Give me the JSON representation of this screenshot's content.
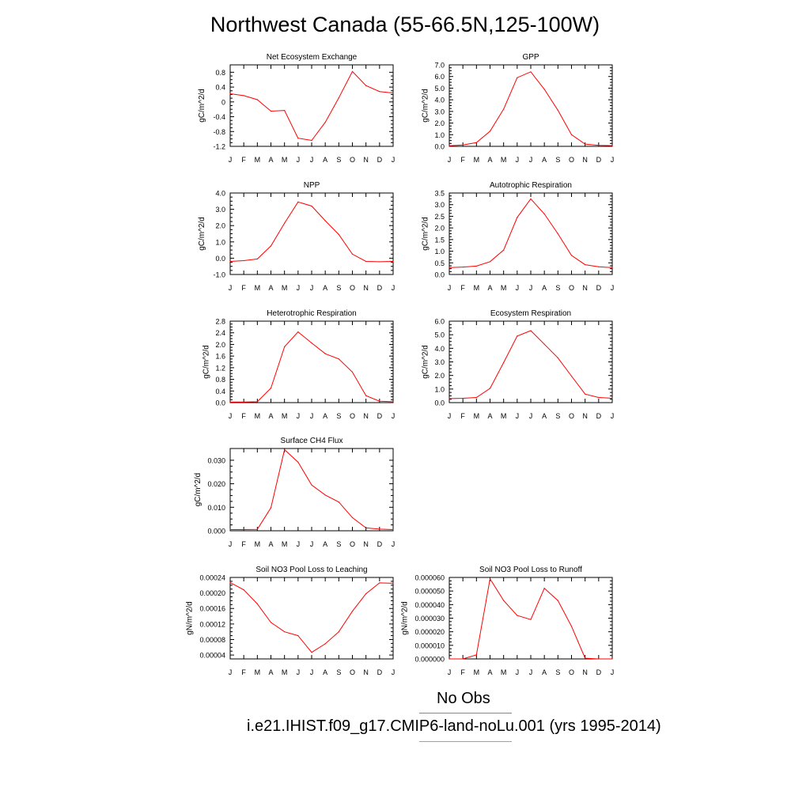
{
  "figure": {
    "title": "Northwest Canada (55-66.5N,125-100W)",
    "series_color": "#ff0000",
    "obs_color": "#7777ff"
  },
  "legend": {
    "obs_label": "No Obs",
    "model_label": "i.e21.IHIST.f09_g17.CMIP6-land-noLu.001 (yrs 1995-2014)"
  },
  "chart_data": [
    {
      "type": "line",
      "title": "Net Ecosystem Exchange",
      "ylabel": "gC/m^2/d",
      "xlabel": "",
      "categories": [
        "J",
        "F",
        "M",
        "A",
        "M",
        "J",
        "J",
        "A",
        "S",
        "O",
        "N",
        "D",
        "J"
      ],
      "ylim": [
        -1.2,
        1.0
      ],
      "yticks": [
        -1.2,
        -0.8,
        -0.4,
        0,
        0.4,
        0.8
      ],
      "yticklabels": [
        "-1.2",
        "-0.8",
        "-0.4",
        "0",
        "0.4",
        "0.8"
      ],
      "values": [
        0.22,
        0.17,
        0.06,
        -0.25,
        -0.23,
        -0.98,
        -1.04,
        -0.55,
        0.11,
        0.82,
        0.44,
        0.28,
        0.24
      ]
    },
    {
      "type": "line",
      "title": "GPP",
      "ylabel": "gC/m^2/d",
      "xlabel": "",
      "categories": [
        "J",
        "F",
        "M",
        "A",
        "M",
        "J",
        "J",
        "A",
        "S",
        "O",
        "N",
        "D",
        "J"
      ],
      "ylim": [
        0,
        7.0
      ],
      "yticks": [
        0,
        1,
        2,
        3,
        4,
        5,
        6,
        7
      ],
      "yticklabels": [
        "0.0",
        "1.0",
        "2.0",
        "3.0",
        "4.0",
        "5.0",
        "6.0",
        "7.0"
      ],
      "values": [
        0.05,
        0.12,
        0.32,
        1.3,
        3.2,
        5.9,
        6.4,
        4.9,
        3.1,
        1.0,
        0.2,
        0.08,
        0.06
      ]
    },
    {
      "type": "line",
      "title": "NPP",
      "ylabel": "gC/m^2/d",
      "xlabel": "",
      "categories": [
        "J",
        "F",
        "M",
        "A",
        "M",
        "J",
        "J",
        "A",
        "S",
        "O",
        "N",
        "D",
        "J"
      ],
      "ylim": [
        -1.0,
        4.0
      ],
      "yticks": [
        -1,
        0,
        1,
        2,
        3,
        4
      ],
      "yticklabels": [
        "-1.0",
        "0.0",
        "1.0",
        "2.0",
        "3.0",
        "4.0"
      ],
      "values": [
        -0.2,
        -0.15,
        -0.05,
        0.75,
        2.15,
        3.45,
        3.2,
        2.3,
        1.45,
        0.25,
        -0.2,
        -0.22,
        -0.2
      ]
    },
    {
      "type": "line",
      "title": "Autotrophic Respiration",
      "ylabel": "gC/m^2/d",
      "xlabel": "",
      "categories": [
        "J",
        "F",
        "M",
        "A",
        "M",
        "J",
        "J",
        "A",
        "S",
        "O",
        "N",
        "D",
        "J"
      ],
      "ylim": [
        0,
        3.5
      ],
      "yticks": [
        0,
        0.5,
        1,
        1.5,
        2,
        2.5,
        3,
        3.5
      ],
      "yticklabels": [
        "0.0",
        "0.5",
        "1.0",
        "1.5",
        "2.0",
        "2.5",
        "3.0",
        "3.5"
      ],
      "values": [
        0.3,
        0.32,
        0.36,
        0.55,
        1.05,
        2.45,
        3.25,
        2.6,
        1.75,
        0.82,
        0.42,
        0.33,
        0.3
      ]
    },
    {
      "type": "line",
      "title": "Heterotrophic Respiration",
      "ylabel": "gC/m^2/d",
      "xlabel": "",
      "categories": [
        "J",
        "F",
        "M",
        "A",
        "M",
        "J",
        "J",
        "A",
        "S",
        "O",
        "N",
        "D",
        "J"
      ],
      "ylim": [
        0,
        2.8
      ],
      "yticks": [
        0,
        0.4,
        0.8,
        1.2,
        1.6,
        2.0,
        2.4,
        2.8
      ],
      "yticklabels": [
        "0.0",
        "0.4",
        "0.8",
        "1.2",
        "1.6",
        "2.0",
        "2.4",
        "2.8"
      ],
      "values": [
        0.02,
        0.02,
        0.03,
        0.5,
        1.92,
        2.43,
        2.05,
        1.68,
        1.5,
        1.05,
        0.24,
        0.05,
        0.03
      ]
    },
    {
      "type": "line",
      "title": "Ecosystem Respiration",
      "ylabel": "gC/m^2/d",
      "xlabel": "",
      "categories": [
        "J",
        "F",
        "M",
        "A",
        "M",
        "J",
        "J",
        "A",
        "S",
        "O",
        "N",
        "D",
        "J"
      ],
      "ylim": [
        0,
        6.0
      ],
      "yticks": [
        0,
        1,
        2,
        3,
        4,
        5,
        6
      ],
      "yticklabels": [
        "0.0",
        "1.0",
        "2.0",
        "3.0",
        "4.0",
        "5.0",
        "6.0"
      ],
      "values": [
        0.3,
        0.32,
        0.38,
        1.05,
        2.95,
        4.9,
        5.3,
        4.3,
        3.3,
        1.95,
        0.63,
        0.38,
        0.32
      ]
    },
    {
      "type": "line",
      "title": "Surface CH4 Flux",
      "ylabel": "gC/m^2/d",
      "xlabel": "",
      "categories": [
        "J",
        "F",
        "M",
        "A",
        "M",
        "J",
        "J",
        "A",
        "S",
        "O",
        "N",
        "D",
        "J"
      ],
      "ylim": [
        0,
        0.035
      ],
      "yticks": [
        0,
        0.01,
        0.02,
        0.03
      ],
      "yticklabels": [
        "0.000",
        "0.010",
        "0.020",
        "0.030"
      ],
      "values": [
        0.0005,
        0.0005,
        0.0006,
        0.0098,
        0.0345,
        0.0292,
        0.0195,
        0.0152,
        0.0122,
        0.0056,
        0.0012,
        0.0007,
        0.0005
      ]
    },
    {
      "type": "line",
      "title": "Soil NO3 Pool Loss to Leaching",
      "ylabel": "gN/m^2/d",
      "xlabel": "",
      "categories": [
        "J",
        "F",
        "M",
        "A",
        "M",
        "J",
        "J",
        "A",
        "S",
        "O",
        "N",
        "D",
        "J"
      ],
      "ylim": [
        3e-05,
        0.00024
      ],
      "yticks": [
        4e-05,
        8e-05,
        0.00012,
        0.00016,
        0.0002,
        0.00024
      ],
      "yticklabels": [
        "0.00004",
        "0.00008",
        "0.00012",
        "0.00016",
        "0.00020",
        "0.00024"
      ],
      "values": [
        0.000227,
        0.000208,
        0.000172,
        0.000124,
        0.0001,
        9e-05,
        4.7e-05,
        6.9e-05,
        0.0001,
        0.000153,
        0.000198,
        0.000226,
        0.000225
      ]
    },
    {
      "type": "line",
      "title": "Soil NO3 Pool Loss to Runoff",
      "ylabel": "gN/m^2/d",
      "xlabel": "",
      "categories": [
        "J",
        "F",
        "M",
        "A",
        "M",
        "J",
        "J",
        "A",
        "S",
        "O",
        "N",
        "D",
        "J"
      ],
      "ylim": [
        0,
        6e-05
      ],
      "yticks": [
        0,
        1e-05,
        2e-05,
        3e-05,
        4e-05,
        5e-05,
        6e-05
      ],
      "yticklabels": [
        "0.000000",
        "0.000010",
        "0.000020",
        "0.000030",
        "0.000040",
        "0.000050",
        "0.000060"
      ],
      "values": [
        0.0,
        0.0,
        3e-06,
        5.9e-05,
        4.3e-05,
        3.2e-05,
        2.9e-05,
        5.2e-05,
        4.3e-05,
        2.4e-05,
        5e-07,
        0.0,
        0.0
      ]
    }
  ]
}
